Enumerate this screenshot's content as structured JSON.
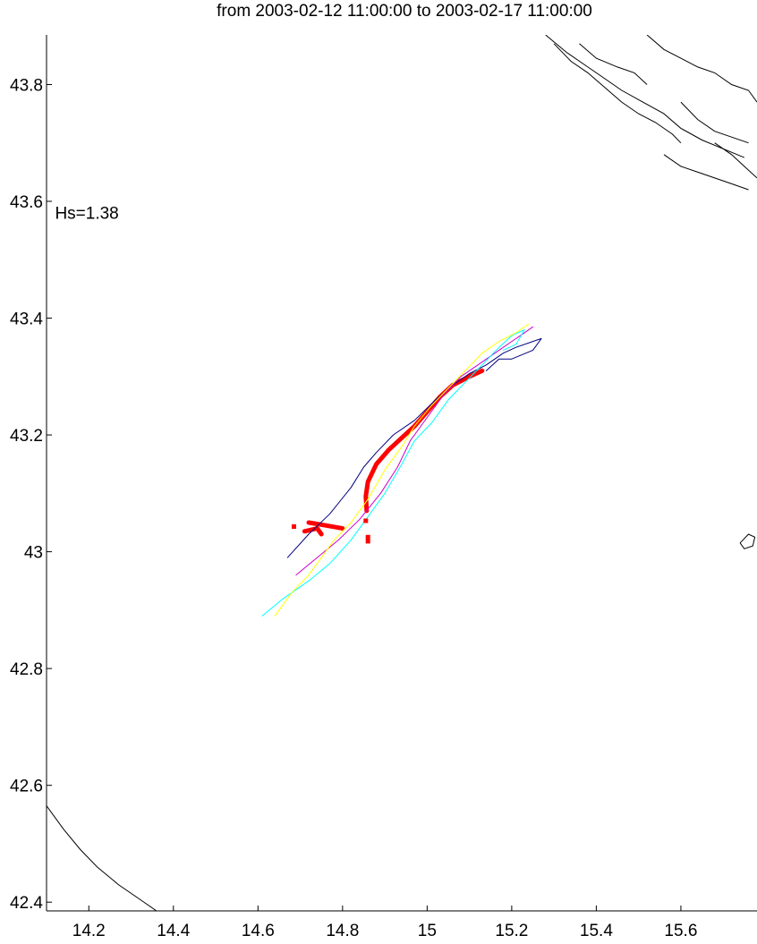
{
  "chart_data": {
    "type": "line",
    "title": "from 2003-02-12 11:00:00 to 2003-02-17 11:00:00",
    "xlabel": "",
    "ylabel": "",
    "xlim": [
      14.1,
      15.78
    ],
    "ylim": [
      42.385,
      43.885
    ],
    "xticks": [
      14.2,
      14.4,
      14.6,
      14.8,
      15,
      15.2,
      15.4,
      15.6
    ],
    "yticks": [
      42.4,
      42.6,
      42.8,
      43,
      43.2,
      43.4,
      43.6,
      43.8
    ],
    "grid": false,
    "annotations": [
      {
        "text": "Hs=1.38",
        "x": 14.12,
        "y": 43.57
      }
    ],
    "colors": {
      "coastline": "#000000",
      "observed": "#ff0000",
      "model_navy": "#000080",
      "model_magenta": "#cc00cc",
      "model_cyan": "#00ffff",
      "model_yellow": "#ffff00"
    },
    "coastlines": [
      {
        "name": "",
        "color": "#000000",
        "points": [
          [
            14.1,
            42.565
          ],
          [
            14.14,
            42.525
          ],
          [
            14.18,
            42.49
          ],
          [
            14.22,
            42.46
          ],
          [
            14.27,
            42.43
          ],
          [
            14.32,
            42.405
          ],
          [
            14.36,
            42.385
          ]
        ]
      },
      {
        "name": "",
        "color": "#000000",
        "points": [
          [
            15.28,
            43.885
          ],
          [
            15.33,
            43.855
          ],
          [
            15.37,
            43.835
          ],
          [
            15.42,
            43.81
          ],
          [
            15.46,
            43.79
          ],
          [
            15.51,
            43.77
          ],
          [
            15.56,
            43.75
          ],
          [
            15.6,
            43.725
          ],
          [
            15.65,
            43.705
          ],
          [
            15.7,
            43.69
          ],
          [
            15.75,
            43.675
          ]
        ]
      },
      {
        "name": "",
        "color": "#000000",
        "points": [
          [
            15.3,
            43.87
          ],
          [
            15.34,
            43.84
          ],
          [
            15.38,
            43.82
          ],
          [
            15.42,
            43.795
          ],
          [
            15.46,
            43.77
          ],
          [
            15.5,
            43.75
          ],
          [
            15.54,
            43.735
          ],
          [
            15.58,
            43.715
          ],
          [
            15.6,
            43.7
          ]
        ]
      },
      {
        "name": "",
        "color": "#000000",
        "points": [
          [
            15.36,
            43.87
          ],
          [
            15.4,
            43.845
          ],
          [
            15.45,
            43.83
          ],
          [
            15.49,
            43.82
          ],
          [
            15.52,
            43.8
          ]
        ]
      },
      {
        "name": "",
        "color": "#000000",
        "points": [
          [
            15.52,
            43.885
          ],
          [
            15.56,
            43.86
          ],
          [
            15.6,
            43.845
          ],
          [
            15.64,
            43.83
          ],
          [
            15.68,
            43.82
          ],
          [
            15.72,
            43.8
          ],
          [
            15.76,
            43.79
          ],
          [
            15.78,
            43.77
          ]
        ]
      },
      {
        "name": "",
        "color": "#000000",
        "points": [
          [
            15.6,
            43.77
          ],
          [
            15.64,
            43.74
          ],
          [
            15.68,
            43.72
          ],
          [
            15.72,
            43.71
          ],
          [
            15.76,
            43.7
          ]
        ]
      },
      {
        "name": "",
        "color": "#000000",
        "points": [
          [
            15.56,
            43.68
          ],
          [
            15.6,
            43.66
          ],
          [
            15.64,
            43.65
          ],
          [
            15.68,
            43.64
          ],
          [
            15.72,
            43.63
          ],
          [
            15.76,
            43.62
          ]
        ]
      },
      {
        "name": "",
        "color": "#000000",
        "points": [
          [
            15.68,
            43.7
          ],
          [
            15.72,
            43.68
          ],
          [
            15.75,
            43.66
          ],
          [
            15.78,
            43.64
          ]
        ]
      },
      {
        "name": "",
        "color": "#000000",
        "points": [
          [
            15.74,
            43.015
          ],
          [
            15.76,
            43.03
          ],
          [
            15.775,
            43.025
          ],
          [
            15.77,
            43.01
          ],
          [
            15.75,
            43.005
          ],
          [
            15.74,
            43.015
          ]
        ]
      }
    ],
    "series": [
      {
        "name": "",
        "color": "#ff0000",
        "width": 5,
        "points": [
          [
            15.13,
            43.31
          ],
          [
            15.1,
            43.3
          ],
          [
            15.06,
            43.285
          ],
          [
            15.03,
            43.265
          ],
          [
            15.0,
            43.24
          ],
          [
            14.97,
            43.215
          ],
          [
            14.94,
            43.195
          ],
          [
            14.91,
            43.175
          ],
          [
            14.88,
            43.15
          ],
          [
            14.86,
            43.12
          ],
          [
            14.855,
            43.095
          ],
          [
            14.857,
            43.07
          ]
        ]
      },
      {
        "name": "",
        "color": "#ff0000",
        "width": 5,
        "points": [
          [
            14.72,
            43.05
          ],
          [
            14.76,
            43.045
          ],
          [
            14.8,
            43.04
          ]
        ]
      },
      {
        "name": "",
        "color": "#ff0000",
        "width": 5,
        "points": [
          [
            14.71,
            43.035
          ],
          [
            14.74,
            43.04
          ],
          [
            14.75,
            43.03
          ]
        ]
      },
      {
        "name": "",
        "color": "#000080",
        "width": 1,
        "points": [
          [
            14.67,
            42.99
          ],
          [
            14.72,
            43.03
          ],
          [
            14.77,
            43.065
          ],
          [
            14.82,
            43.11
          ],
          [
            14.85,
            43.145
          ],
          [
            14.88,
            43.17
          ],
          [
            14.92,
            43.2
          ],
          [
            14.97,
            43.225
          ],
          [
            15.02,
            43.26
          ],
          [
            15.06,
            43.285
          ],
          [
            15.1,
            43.305
          ],
          [
            15.14,
            43.32
          ],
          [
            15.18,
            43.34
          ],
          [
            15.21,
            43.35
          ],
          [
            15.25,
            43.36
          ],
          [
            15.27,
            43.365
          ],
          [
            15.25,
            43.345
          ],
          [
            15.2,
            43.33
          ],
          [
            15.17,
            43.33
          ],
          [
            15.14,
            43.31
          ]
        ]
      },
      {
        "name": "",
        "color": "#cc00cc",
        "width": 1,
        "points": [
          [
            14.69,
            42.96
          ],
          [
            14.74,
            42.99
          ],
          [
            14.79,
            43.02
          ],
          [
            14.84,
            43.055
          ],
          [
            14.89,
            43.1
          ],
          [
            14.93,
            43.145
          ],
          [
            14.96,
            43.19
          ],
          [
            15.0,
            43.23
          ],
          [
            15.04,
            43.27
          ],
          [
            15.08,
            43.3
          ],
          [
            15.12,
            43.32
          ],
          [
            15.16,
            43.34
          ],
          [
            15.2,
            43.36
          ],
          [
            15.23,
            43.375
          ],
          [
            15.25,
            43.385
          ]
        ]
      },
      {
        "name": "",
        "color": "#00ffff",
        "width": 1,
        "points": [
          [
            14.61,
            42.89
          ],
          [
            14.66,
            42.92
          ],
          [
            14.72,
            42.95
          ],
          [
            14.77,
            42.98
          ],
          [
            14.82,
            43.02
          ],
          [
            14.86,
            43.06
          ],
          [
            14.9,
            43.1
          ],
          [
            14.94,
            43.15
          ],
          [
            14.97,
            43.19
          ],
          [
            15.01,
            43.22
          ],
          [
            15.05,
            43.26
          ],
          [
            15.09,
            43.29
          ],
          [
            15.13,
            43.32
          ],
          [
            15.17,
            43.35
          ],
          [
            15.2,
            43.37
          ],
          [
            15.23,
            43.38
          ],
          [
            15.21,
            43.355
          ],
          [
            15.18,
            43.345
          ]
        ]
      },
      {
        "name": "",
        "color": "#ffff00",
        "width": 1,
        "points": [
          [
            14.64,
            42.89
          ],
          [
            14.68,
            42.93
          ],
          [
            14.72,
            42.96
          ],
          [
            14.75,
            42.99
          ],
          [
            14.78,
            43.02
          ],
          [
            14.82,
            43.05
          ],
          [
            14.86,
            43.09
          ],
          [
            14.9,
            43.14
          ],
          [
            14.94,
            43.18
          ],
          [
            14.97,
            43.215
          ],
          [
            15.01,
            43.25
          ],
          [
            15.05,
            43.28
          ],
          [
            15.09,
            43.31
          ],
          [
            15.13,
            43.34
          ],
          [
            15.17,
            43.36
          ],
          [
            15.21,
            43.375
          ],
          [
            15.24,
            43.39
          ]
        ]
      }
    ],
    "scatter": [
      {
        "name": "",
        "color": "#ff0000",
        "points": [
          [
            14.685,
            43.043
          ],
          [
            14.855,
            43.053
          ],
          [
            14.86,
            43.025
          ],
          [
            14.86,
            43.018
          ]
        ]
      }
    ]
  }
}
